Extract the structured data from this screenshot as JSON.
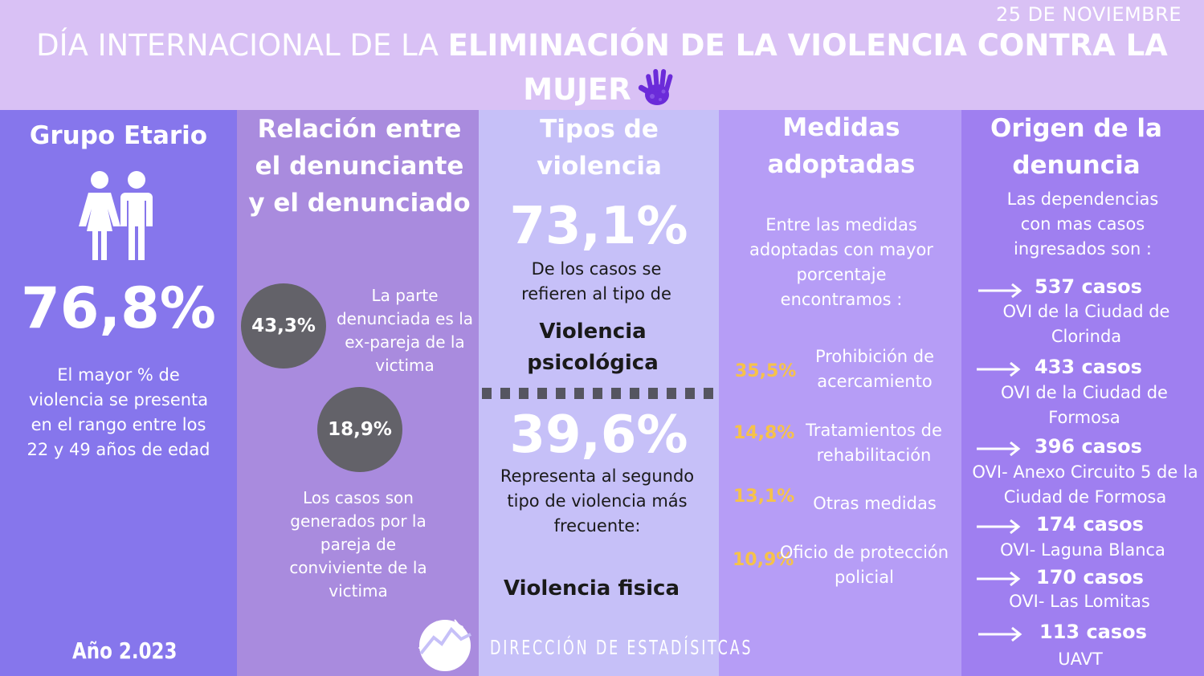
{
  "header": {
    "date": "25 DE NOVIEMBRE",
    "title_light": "DÍA INTERNACIONAL DE LA ",
    "title_bold_1": "ELIMINACIÓN DE LA VIOLENCIA CONTRA LA",
    "title_bold_2": "MUJER",
    "icon": "purple-hand-icon",
    "colors": {
      "header_bg": "#d9c1f5",
      "hand": "#6b2bd9"
    }
  },
  "age_group": {
    "heading": "Grupo Etario",
    "icon": "couple-icon",
    "percent": "76,8%",
    "description": "El mayor % de violencia se presenta en el rango entre los 22 y 49 años de edad",
    "year": "Año 2.023"
  },
  "relationship": {
    "heading": "Relación entre el denunciante y el denunciado",
    "item1": {
      "percent": "43,3%",
      "text": "La parte denunciada es la ex-pareja de la victima"
    },
    "item2": {
      "percent": "18,9%",
      "text": "Los casos son generados por la pareja de conviviente de la victima"
    }
  },
  "violence_types": {
    "heading": "Tipos de violencia",
    "first": {
      "percent": "73,1%",
      "text": "De los casos se refieren al tipo de",
      "type": "Violencia psicológica"
    },
    "second": {
      "percent": "39,6%",
      "text": "Representa al segundo tipo de violencia más frecuente:",
      "type": "Violencia fisica"
    }
  },
  "measures": {
    "heading": "Medidas adoptadas",
    "intro": "Entre las medidas adoptadas con mayor porcentaje encontramos :",
    "items": [
      {
        "percent": "35,5%",
        "label": "Prohibición de acercamiento"
      },
      {
        "percent": "14,8%",
        "label": "Tratamientos de rehabilitación"
      },
      {
        "percent": "13,1%",
        "label": "Otras medidas"
      },
      {
        "percent": "10,9%",
        "label": "Oficio de protección policial"
      }
    ],
    "colors": {
      "percent": "#f6c24a"
    }
  },
  "origin": {
    "heading": "Origen de la denuncia",
    "intro": "Las dependencias con mas casos ingresados  son :",
    "items": [
      {
        "cases": "537 casos",
        "place": "OVI de la Ciudad de Clorinda"
      },
      {
        "cases": "433 casos",
        "place": "OVI de la Ciudad de Formosa"
      },
      {
        "cases": "396 casos",
        "place": "OVI- Anexo Circuito 5 de la Ciudad de Formosa"
      },
      {
        "cases": "174 casos",
        "place": "OVI- Laguna Blanca"
      },
      {
        "cases": "170 casos",
        "place": "OVI- Las Lomitas"
      },
      {
        "cases": "113 casos",
        "place": "UAVT"
      }
    ]
  },
  "footer": {
    "brand": "DIRECCIÓN DE ESTADÍSITCAS",
    "logo": "circuit-logo-icon"
  }
}
